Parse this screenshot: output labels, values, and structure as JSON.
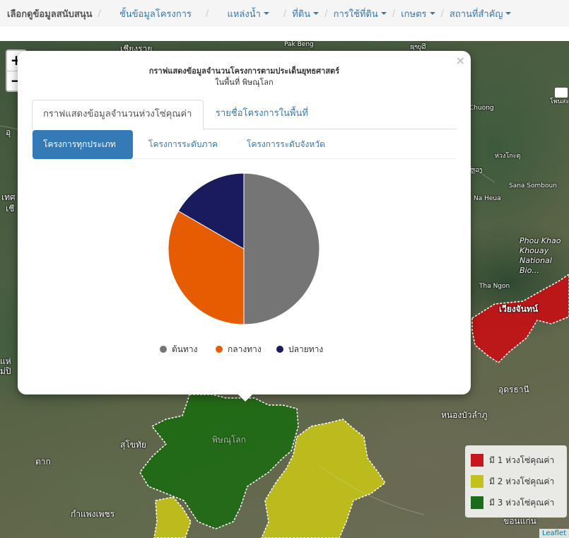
{
  "nav": {
    "items": [
      {
        "label": "เลือกดูข้อมูลสนับสนุน",
        "dropdown": false
      },
      {
        "label": "ชั้นข้อมูลโครงการ",
        "dropdown": false
      },
      {
        "label": "แหล่งน้ำ",
        "dropdown": true
      },
      {
        "label": "ที่ดิน",
        "dropdown": true
      },
      {
        "label": "การใช้ที่ดิน",
        "dropdown": true
      },
      {
        "label": "เกษตร",
        "dropdown": true
      },
      {
        "label": "สถานที่สำคัญ",
        "dropdown": true
      }
    ]
  },
  "map": {
    "zoom_in": "+",
    "zoom_out": "−",
    "labels": [
      "Pak Beng",
      "เชียงราย",
      "ຊາບຸລີ",
      "โพนสะ",
      "Chuong",
      "ຫຼວງ",
      "ห่วงโกะตุ",
      "Sana Somboun",
      "Na Heua",
      "Phou Khao Khouay National Bio...",
      "Tha Ngon",
      "เวียงจันทน์",
      "อุดรธานี",
      "หนองบัวลำภู",
      "สุโขทัย",
      "ตาก",
      "พิษณุโลก",
      "กำแพงเพชร",
      "ขอนแก่น",
      "อุ",
      "เทศ",
      "เชี",
      "แห่",
      "ม่ปิ"
    ],
    "attribution": "Leaflet"
  },
  "legend": {
    "items": [
      {
        "label": "มี 1 ห่วงโซ่คุณค่า",
        "color": "#c8161d"
      },
      {
        "label": "มี 2 ห่วงโซ่คุณค่า",
        "color": "#c3c21a"
      },
      {
        "label": "มี 3 ห่วงโซ่คุณค่า",
        "color": "#1c6a1c"
      }
    ]
  },
  "popup": {
    "close": "×",
    "title": "กราฟแสดงข้อมูลจำนวนโครงการตามประเด็นยุทธศาสตร์",
    "subtitle": "ในพื้นที่ พิษณุโลก",
    "tabs": [
      "กราฟแสดงข้อมูลจำนวนห่วงโซ่คุณค่า",
      "รายชื่อโครงการในพื้นที่"
    ],
    "pills": [
      "โครงการทุกประเภท",
      "โครงการระดับภาค",
      "โครงการระดับจังหวัด"
    ]
  },
  "chart_data": {
    "type": "pie",
    "categories": [
      "ต้นทาง",
      "กลางทาง",
      "ปลายทาง"
    ],
    "values": [
      3,
      2,
      1
    ],
    "colors": [
      "#757575",
      "#e65c00",
      "#1a1a5e"
    ],
    "legend_position": "bottom"
  }
}
